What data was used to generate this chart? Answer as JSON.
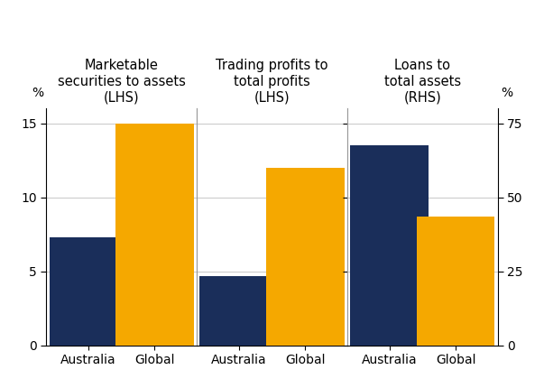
{
  "panels": [
    {
      "title": "Marketable\nSecurities to assets\n(LHS)",
      "title_lines": [
        "Marketable",
        "securities to assets",
        "(LHS)"
      ],
      "bars": [
        {
          "label": "Australia",
          "value": 7.3,
          "color": "#1a2e5a"
        },
        {
          "label": "Global",
          "value": 15.0,
          "color": "#f5a800"
        }
      ],
      "scale": "LHS"
    },
    {
      "title": "Trading profits to\ntotal profits\n(LHS)",
      "title_lines": [
        "Trading profits to",
        "total profits",
        "(LHS)"
      ],
      "bars": [
        {
          "label": "Australia",
          "value": 4.7,
          "color": "#1a2e5a"
        },
        {
          "label": "Global",
          "value": 12.0,
          "color": "#f5a800"
        }
      ],
      "scale": "LHS"
    },
    {
      "title": "Loans to\ntotal assets\n(RHS)",
      "title_lines": [
        "Loans to",
        "total assets",
        "(RHS)"
      ],
      "bars": [
        {
          "label": "Australia",
          "value": 13.5,
          "color": "#1a2e5a"
        },
        {
          "label": "Global",
          "value": 8.7,
          "color": "#f5a800"
        }
      ],
      "scale": "RHS"
    }
  ],
  "lhs_ylim": [
    0,
    16
  ],
  "lhs_yticks": [
    0,
    5,
    10,
    15
  ],
  "rhs_ylim": [
    0,
    80
  ],
  "rhs_yticks": [
    0,
    25,
    50,
    75
  ],
  "lhs_label": "%",
  "rhs_label": "%",
  "background_color": "#ffffff",
  "bar_width": 0.52,
  "bar_positions": [
    0.28,
    0.72
  ],
  "title_fontsize": 10.5,
  "tick_fontsize": 10,
  "label_fontsize": 10,
  "grid_color": "#cccccc",
  "spine_color": "#999999"
}
